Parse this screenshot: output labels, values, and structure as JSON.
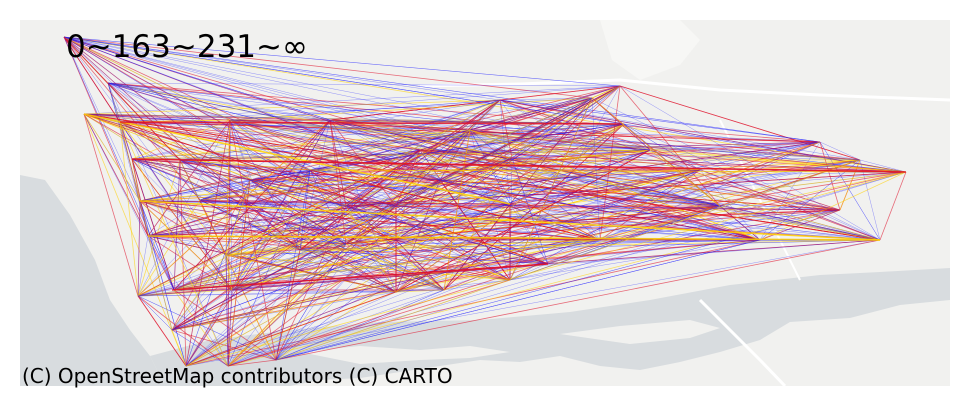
{
  "map": {
    "legend_text": "0~163~231~∞",
    "attribution": "(C) OpenStreetMap contributors (C) CARTO",
    "colors": {
      "background": "#ffffff",
      "land": "#f1f1ef",
      "land_light": "#f7f7f5",
      "water": "#d8dcdf",
      "road": "#ffffff",
      "edge_low": "#2020ff",
      "edge_mid": "#e0102a",
      "edge_high": "#ffd000"
    }
  }
}
